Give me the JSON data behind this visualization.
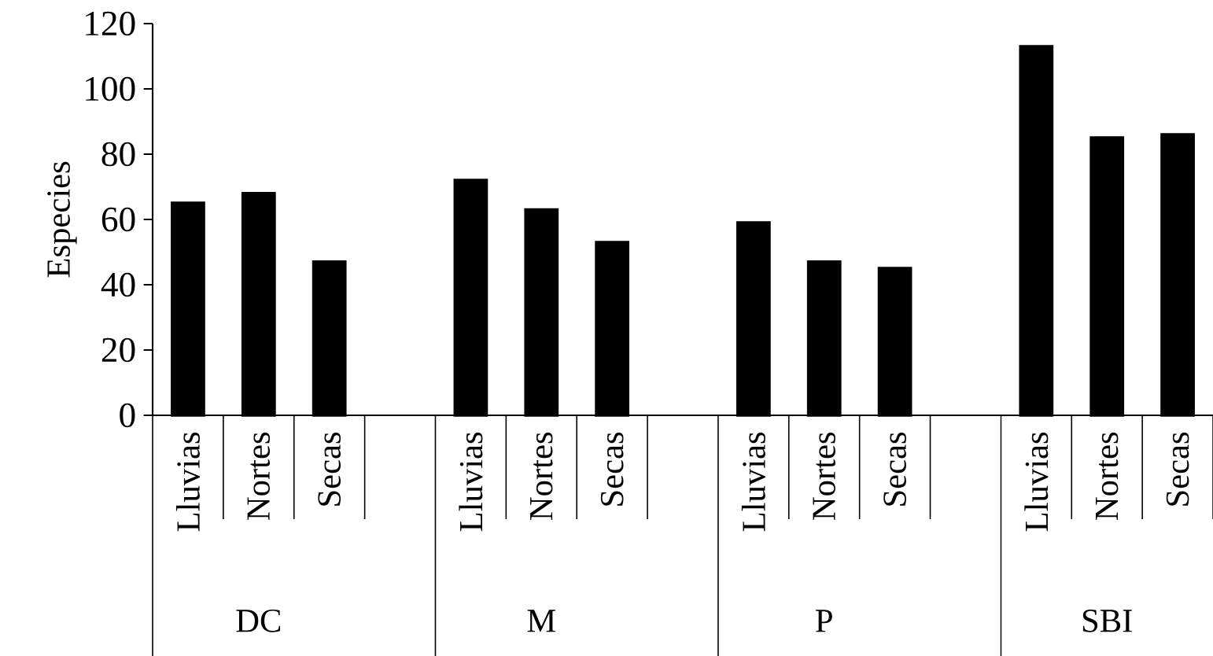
{
  "chart_data": {
    "type": "bar",
    "ylabel": "Especies",
    "categories": [
      "Lluvias",
      "Nortes",
      "Secas",
      "Lluvias",
      "Nortes",
      "Secas",
      "Lluvias",
      "Nortes",
      "Secas",
      "Lluvias",
      "Nortes",
      "Secas"
    ],
    "values": [
      65,
      68,
      47,
      72,
      63,
      53,
      59,
      47,
      45,
      113,
      85,
      86
    ],
    "color": "#000000",
    "ylim": [
      0,
      120
    ],
    "yticks": [
      0,
      20,
      40,
      60,
      80,
      100,
      120
    ],
    "annotations": [
      "DC",
      "M",
      "P",
      "SBI"
    ]
  }
}
